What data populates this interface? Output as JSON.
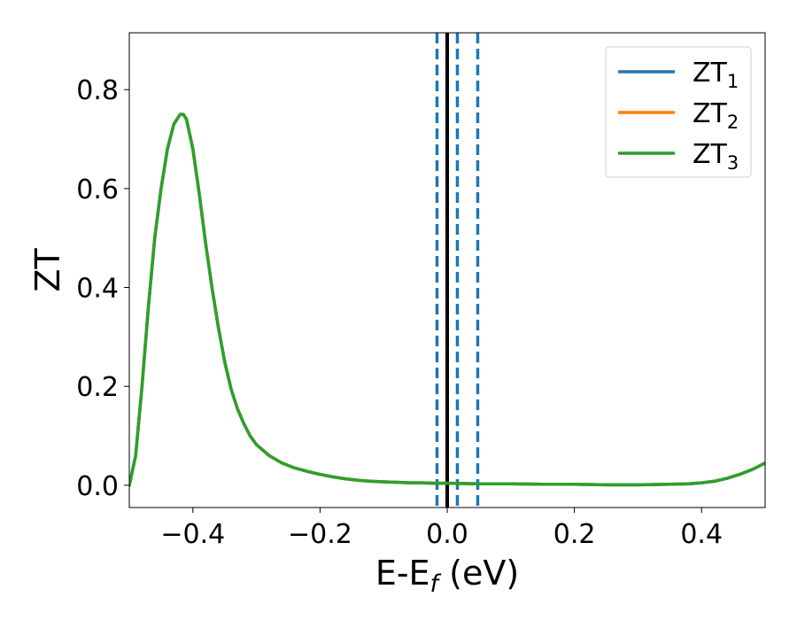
{
  "chart_data": {
    "type": "line",
    "title": "",
    "xlabel_main": "E-E",
    "xlabel_sub": "f",
    "xlabel_unit": " (eV)",
    "ylabel": "ZT",
    "xlim": [
      -0.5,
      0.5
    ],
    "ylim": [
      -0.045,
      0.915
    ],
    "xticks": [
      -0.4,
      -0.2,
      0.0,
      0.2,
      0.4
    ],
    "xtick_labels": [
      "−0.4",
      "−0.2",
      "0.0",
      "0.2",
      "0.4"
    ],
    "yticks": [
      0.0,
      0.2,
      0.4,
      0.6,
      0.8
    ],
    "ytick_labels": [
      "0.0",
      "0.2",
      "0.4",
      "0.6",
      "0.8"
    ],
    "grid": false,
    "legend_position": "top-right",
    "vlines": [
      {
        "x": 0.0,
        "color": "#000000",
        "style": "solid"
      },
      {
        "x": -0.016,
        "color": "#1f77b4",
        "style": "dashed"
      },
      {
        "x": 0.016,
        "color": "#1f77b4",
        "style": "dashed"
      },
      {
        "x": 0.048,
        "color": "#1f77b4",
        "style": "dashed"
      }
    ],
    "x": [
      -0.5,
      -0.49,
      -0.48,
      -0.47,
      -0.46,
      -0.45,
      -0.44,
      -0.43,
      -0.42,
      -0.415,
      -0.41,
      -0.4,
      -0.39,
      -0.38,
      -0.37,
      -0.36,
      -0.35,
      -0.34,
      -0.33,
      -0.32,
      -0.31,
      -0.3,
      -0.28,
      -0.26,
      -0.24,
      -0.22,
      -0.2,
      -0.18,
      -0.16,
      -0.14,
      -0.12,
      -0.1,
      -0.08,
      -0.06,
      -0.04,
      -0.02,
      0.0,
      0.05,
      0.1,
      0.15,
      0.2,
      0.25,
      0.3,
      0.35,
      0.38,
      0.4,
      0.42,
      0.44,
      0.46,
      0.48,
      0.5
    ],
    "series": [
      {
        "name": "ZT",
        "sub": "1",
        "color": "#1f77b4",
        "values": [
          0.0,
          0.06,
          0.2,
          0.36,
          0.5,
          0.6,
          0.68,
          0.73,
          0.75,
          0.75,
          0.74,
          0.68,
          0.59,
          0.49,
          0.4,
          0.32,
          0.25,
          0.195,
          0.155,
          0.125,
          0.1,
          0.082,
          0.06,
          0.045,
          0.035,
          0.028,
          0.022,
          0.017,
          0.013,
          0.01,
          0.008,
          0.007,
          0.006,
          0.005,
          0.005,
          0.004,
          0.004,
          0.003,
          0.003,
          0.002,
          0.002,
          0.001,
          0.001,
          0.002,
          0.003,
          0.005,
          0.008,
          0.014,
          0.022,
          0.032,
          0.045
        ]
      },
      {
        "name": "ZT",
        "sub": "2",
        "color": "#ff7f0e",
        "values": [
          0.0,
          0.06,
          0.2,
          0.36,
          0.5,
          0.6,
          0.68,
          0.73,
          0.75,
          0.75,
          0.74,
          0.68,
          0.59,
          0.49,
          0.4,
          0.32,
          0.25,
          0.195,
          0.155,
          0.125,
          0.1,
          0.082,
          0.06,
          0.045,
          0.035,
          0.028,
          0.022,
          0.017,
          0.013,
          0.01,
          0.008,
          0.007,
          0.006,
          0.005,
          0.005,
          0.004,
          0.004,
          0.003,
          0.003,
          0.002,
          0.002,
          0.001,
          0.001,
          0.002,
          0.003,
          0.005,
          0.008,
          0.014,
          0.022,
          0.032,
          0.045
        ]
      },
      {
        "name": "ZT",
        "sub": "3",
        "color": "#2ca02c",
        "values": [
          0.0,
          0.06,
          0.2,
          0.36,
          0.5,
          0.6,
          0.68,
          0.73,
          0.75,
          0.75,
          0.74,
          0.68,
          0.59,
          0.49,
          0.4,
          0.32,
          0.25,
          0.195,
          0.155,
          0.125,
          0.1,
          0.082,
          0.06,
          0.045,
          0.035,
          0.028,
          0.022,
          0.017,
          0.013,
          0.01,
          0.008,
          0.007,
          0.006,
          0.005,
          0.005,
          0.004,
          0.004,
          0.003,
          0.003,
          0.002,
          0.002,
          0.001,
          0.001,
          0.002,
          0.003,
          0.005,
          0.008,
          0.014,
          0.022,
          0.032,
          0.045
        ]
      }
    ]
  }
}
